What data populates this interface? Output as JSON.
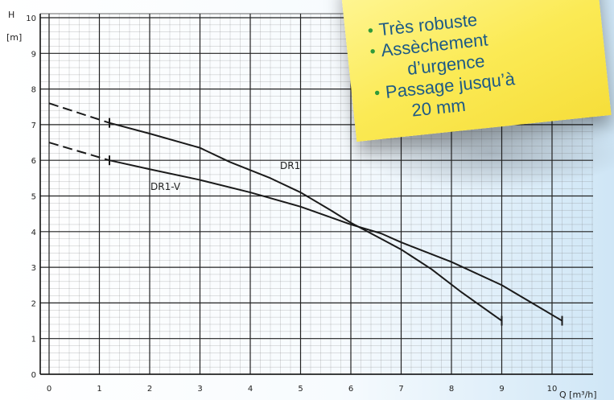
{
  "chart_data": {
    "type": "line",
    "xlabel": "Q [m³/h]",
    "ylabel": "H [m]",
    "xlim": [
      0,
      11
    ],
    "ylim": [
      0,
      10
    ],
    "x_ticks": [
      "0",
      "1",
      "2",
      "3",
      "4",
      "5",
      "6",
      "7",
      "8",
      "9",
      "10"
    ],
    "y_ticks": [
      "0",
      "1",
      "2",
      "3",
      "4",
      "5",
      "6",
      "7",
      "8",
      "9",
      "10"
    ],
    "grid": true,
    "series": [
      {
        "name": "DR1",
        "color": "#1a1a1a",
        "extrapolated": [
          [
            0,
            7.6
          ],
          [
            1.2,
            7.05
          ]
        ],
        "x": [
          1.2,
          2.0,
          3.0,
          3.6,
          4.4,
          5.0,
          5.6,
          6.0,
          6.6,
          7.0,
          7.6,
          8.2,
          9.0
        ],
        "y": [
          7.05,
          6.75,
          6.35,
          5.95,
          5.5,
          5.1,
          4.6,
          4.25,
          3.8,
          3.5,
          2.95,
          2.3,
          1.5
        ]
      },
      {
        "name": "DR1-V",
        "color": "#1a1a1a",
        "extrapolated": [
          [
            0,
            6.5
          ],
          [
            1.2,
            6.0
          ]
        ],
        "x": [
          1.2,
          2.0,
          3.0,
          4.0,
          5.0,
          6.0,
          6.6,
          7.0,
          8.0,
          9.0,
          9.6,
          10.2
        ],
        "y": [
          6.0,
          5.75,
          5.45,
          5.1,
          4.7,
          4.2,
          3.95,
          3.7,
          3.15,
          2.5,
          2.0,
          1.5
        ]
      }
    ]
  },
  "note": {
    "items": [
      [
        "Très robuste"
      ],
      [
        "Assèchement",
        "d’urgence"
      ],
      [
        "Passage jusqu’à",
        "20 mm"
      ]
    ]
  }
}
